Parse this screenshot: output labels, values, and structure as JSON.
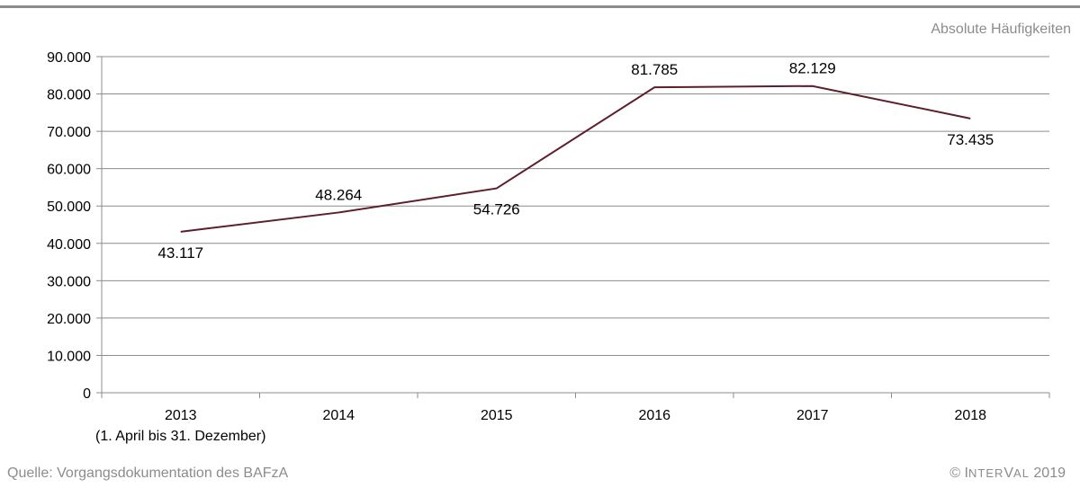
{
  "header": {
    "unit_label": "Absolute Häufigkeiten"
  },
  "footer": {
    "source": "Quelle: Vorgangsdokumentation des BAFzA",
    "copyright_symbol": "©",
    "copyright_brand_I": "I",
    "copyright_brand_NTER": "NTER",
    "copyright_brand_V": "V",
    "copyright_brand_AL": "AL",
    "copyright_year": "2019"
  },
  "chart_data": {
    "type": "line",
    "categories": [
      "2013",
      "2014",
      "2015",
      "2016",
      "2017",
      "2018"
    ],
    "category_sublabels": [
      "(1. April bis 31. Dezember)",
      "",
      "",
      "",
      "",
      ""
    ],
    "values": [
      43117,
      48264,
      54726,
      81785,
      82129,
      73435
    ],
    "value_labels": [
      "43.117",
      "48.264",
      "54.726",
      "81.785",
      "82.129",
      "73.435"
    ],
    "ylim": [
      0,
      90000
    ],
    "yticks": [
      0,
      10000,
      20000,
      30000,
      40000,
      50000,
      60000,
      70000,
      80000,
      90000
    ],
    "ytick_labels": [
      "0",
      "10.000",
      "20.000",
      "30.000",
      "40.000",
      "50.000",
      "60.000",
      "70.000",
      "80.000",
      "90.000"
    ],
    "grid": true,
    "line_color": "#5c1f2b",
    "grid_color": "#8c8c8c"
  }
}
